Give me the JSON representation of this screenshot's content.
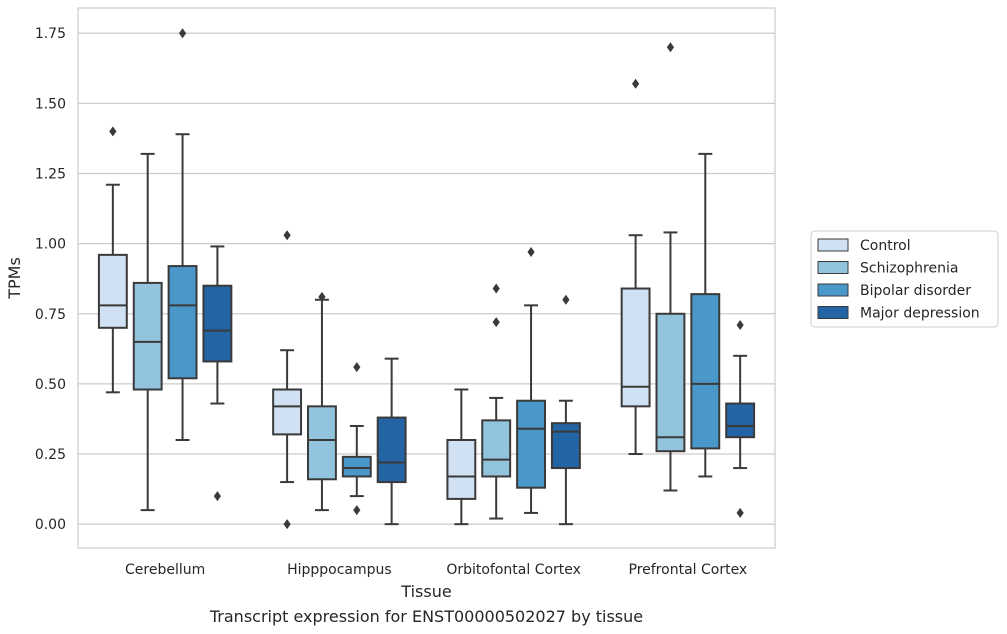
{
  "chart_data": {
    "type": "boxplot",
    "title": "Transcript expression for ENST00000502027 by tissue",
    "xlabel": "Tissue",
    "ylabel": "TPMs",
    "ylim": [
      -0.085,
      1.84
    ],
    "yticks": [
      0.0,
      0.25,
      0.5,
      0.75,
      1.0,
      1.25,
      1.5,
      1.75
    ],
    "ytick_labels": [
      "0.00",
      "0.25",
      "0.50",
      "0.75",
      "1.00",
      "1.25",
      "1.50",
      "1.75"
    ],
    "grid": "horizontal",
    "legend_position": "right",
    "categories": [
      "Cerebellum",
      "Hipppocampus",
      "Orbitofontal Cortex",
      "Prefrontal Cortex"
    ],
    "series": [
      {
        "name": "Control",
        "color": "#cfe1f2",
        "boxes": [
          {
            "whislo": 0.47,
            "q1": 0.7,
            "med": 0.78,
            "q3": 0.96,
            "whishi": 1.21,
            "fliers": [
              1.4
            ]
          },
          {
            "whislo": 0.15,
            "q1": 0.32,
            "med": 0.42,
            "q3": 0.48,
            "whishi": 0.62,
            "fliers": [
              1.03,
              0.0
            ]
          },
          {
            "whislo": 0.0,
            "q1": 0.09,
            "med": 0.17,
            "q3": 0.3,
            "whishi": 0.48,
            "fliers": []
          },
          {
            "whislo": 0.25,
            "q1": 0.42,
            "med": 0.49,
            "q3": 0.84,
            "whishi": 1.03,
            "fliers": [
              1.57
            ]
          }
        ]
      },
      {
        "name": "Schizophrenia",
        "color": "#93c4de",
        "boxes": [
          {
            "whislo": 0.05,
            "q1": 0.48,
            "med": 0.65,
            "q3": 0.86,
            "whishi": 1.32,
            "fliers": []
          },
          {
            "whislo": 0.05,
            "q1": 0.16,
            "med": 0.3,
            "q3": 0.42,
            "whishi": 0.8,
            "fliers": [
              0.81
            ]
          },
          {
            "whislo": 0.02,
            "q1": 0.17,
            "med": 0.23,
            "q3": 0.37,
            "whishi": 0.45,
            "fliers": [
              0.84,
              0.72
            ]
          },
          {
            "whislo": 0.12,
            "q1": 0.26,
            "med": 0.31,
            "q3": 0.75,
            "whishi": 1.04,
            "fliers": [
              1.7
            ]
          }
        ]
      },
      {
        "name": "Bipolar disorder",
        "color": "#4a98c9",
        "boxes": [
          {
            "whislo": 0.3,
            "q1": 0.52,
            "med": 0.78,
            "q3": 0.92,
            "whishi": 1.39,
            "fliers": [
              1.75
            ]
          },
          {
            "whislo": 0.1,
            "q1": 0.17,
            "med": 0.2,
            "q3": 0.24,
            "whishi": 0.35,
            "fliers": [
              0.56,
              0.05
            ]
          },
          {
            "whislo": 0.04,
            "q1": 0.13,
            "med": 0.34,
            "q3": 0.44,
            "whishi": 0.78,
            "fliers": [
              0.97
            ]
          },
          {
            "whislo": 0.17,
            "q1": 0.27,
            "med": 0.5,
            "q3": 0.82,
            "whishi": 1.32,
            "fliers": []
          }
        ]
      },
      {
        "name": "Major depression",
        "color": "#2264a4",
        "boxes": [
          {
            "whislo": 0.43,
            "q1": 0.58,
            "med": 0.69,
            "q3": 0.85,
            "whishi": 0.99,
            "fliers": [
              0.1
            ]
          },
          {
            "whislo": 0.0,
            "q1": 0.15,
            "med": 0.22,
            "q3": 0.38,
            "whishi": 0.59,
            "fliers": []
          },
          {
            "whislo": 0.0,
            "q1": 0.2,
            "med": 0.33,
            "q3": 0.36,
            "whishi": 0.44,
            "fliers": [
              0.8
            ]
          },
          {
            "whislo": 0.2,
            "q1": 0.31,
            "med": 0.35,
            "q3": 0.43,
            "whishi": 0.6,
            "fliers": [
              0.71,
              0.04
            ]
          }
        ]
      }
    ]
  }
}
